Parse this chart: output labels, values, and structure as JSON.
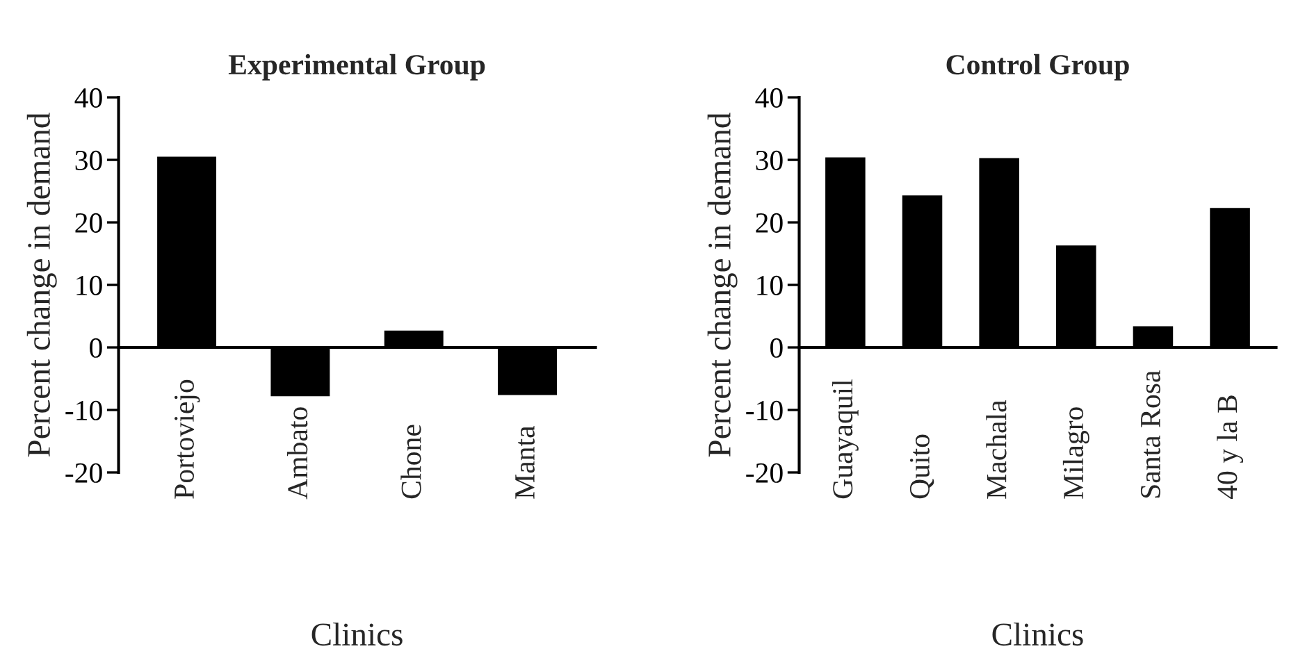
{
  "chart_data": [
    {
      "type": "bar",
      "title": "Experimental Group",
      "xlabel": "Clinics",
      "ylabel": "Percent change in demand",
      "categories": [
        "Portoviejo",
        "Ambato",
        "Chone",
        "Manta"
      ],
      "series": [
        {
          "color": "#000000",
          "values": [
            30.5,
            -7.8,
            2.7,
            -7.6
          ]
        }
      ],
      "ylim": [
        -20,
        40
      ],
      "yticks": [
        -20,
        -10,
        0,
        10,
        20,
        30,
        40
      ],
      "grid": false,
      "legend": false
    },
    {
      "type": "bar",
      "title": "Control Group",
      "xlabel": "Clinics",
      "ylabel": "Percent change in demand",
      "categories": [
        "Guayaquil",
        "Quito",
        "Machala",
        "Milagro",
        "Santa Rosa",
        "40 y la B"
      ],
      "series": [
        {
          "color": "#000000",
          "values": [
            30.4,
            24.3,
            30.3,
            16.3,
            3.4,
            22.3
          ]
        }
      ],
      "ylim": [
        -20,
        40
      ],
      "yticks": [
        -20,
        -10,
        0,
        10,
        20,
        30,
        40
      ],
      "grid": false,
      "legend": false
    }
  ]
}
